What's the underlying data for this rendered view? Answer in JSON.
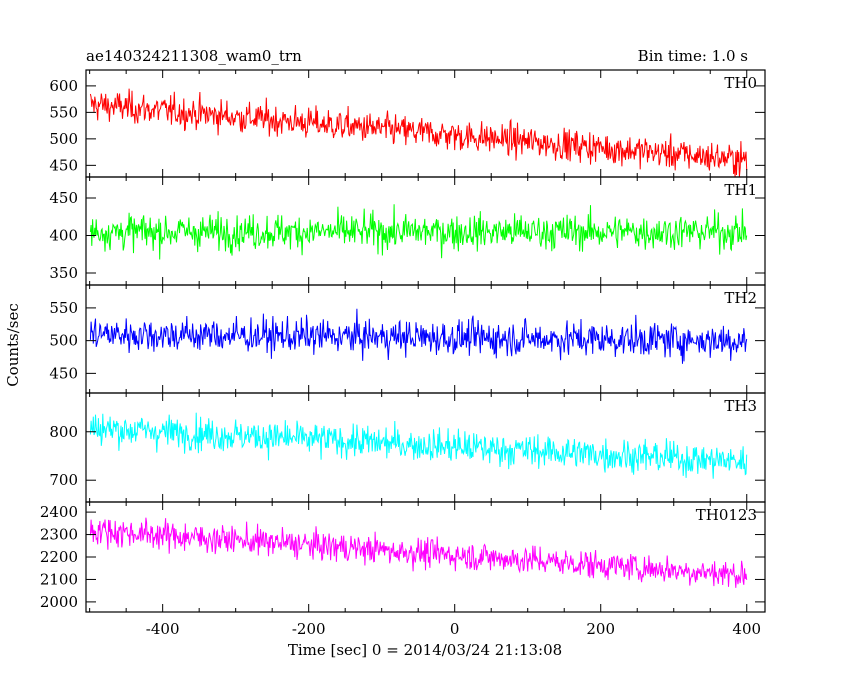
{
  "header": {
    "left_title": "ae140324211308_wam0_trn",
    "right_title": "Bin time: 1.0 s"
  },
  "axes": {
    "xlabel": "Time [sec] 0 = 2014/03/24 21:13:08",
    "ylabel": "Counts/sec"
  },
  "chart_data": {
    "type": "line",
    "title": "ae140324211308_wam0_trn",
    "xlabel": "Time [sec] 0 = 2014/03/24 21:13:08",
    "ylabel": "Counts/sec",
    "xlim": [
      -505,
      425
    ],
    "x_ticks": [
      -400,
      -200,
      0,
      200,
      400
    ],
    "x_range": [
      -499,
      400
    ],
    "bin_time": "1.0 s",
    "grid": false,
    "panels": [
      {
        "name": "TH0",
        "color": "#ff0000",
        "ylim": [
          428,
          630
        ],
        "y_ticks": [
          450,
          500,
          550,
          600
        ],
        "y_start": 565,
        "y_end": 460,
        "y_scatter": 28
      },
      {
        "name": "TH1",
        "color": "#00ff00",
        "ylim": [
          334,
          478
        ],
        "y_ticks": [
          350,
          400,
          450
        ],
        "y_start": 405,
        "y_end": 405,
        "y_scatter": 22
      },
      {
        "name": "TH2",
        "color": "#0000ff",
        "ylim": [
          420,
          585
        ],
        "y_ticks": [
          450,
          500,
          550
        ],
        "y_start": 510,
        "y_end": 500,
        "y_scatter": 25
      },
      {
        "name": "TH3",
        "color": "#00ffff",
        "ylim": [
          655,
          880
        ],
        "y_ticks": [
          700,
          800
        ],
        "y_start": 808,
        "y_end": 738,
        "y_scatter": 32
      },
      {
        "name": "TH0123",
        "color": "#ff00ff",
        "ylim": [
          1955,
          2445
        ],
        "y_ticks": [
          2000,
          2100,
          2200,
          2300,
          2400
        ],
        "y_start": 2320,
        "y_end": 2120,
        "y_scatter": 60
      }
    ]
  }
}
